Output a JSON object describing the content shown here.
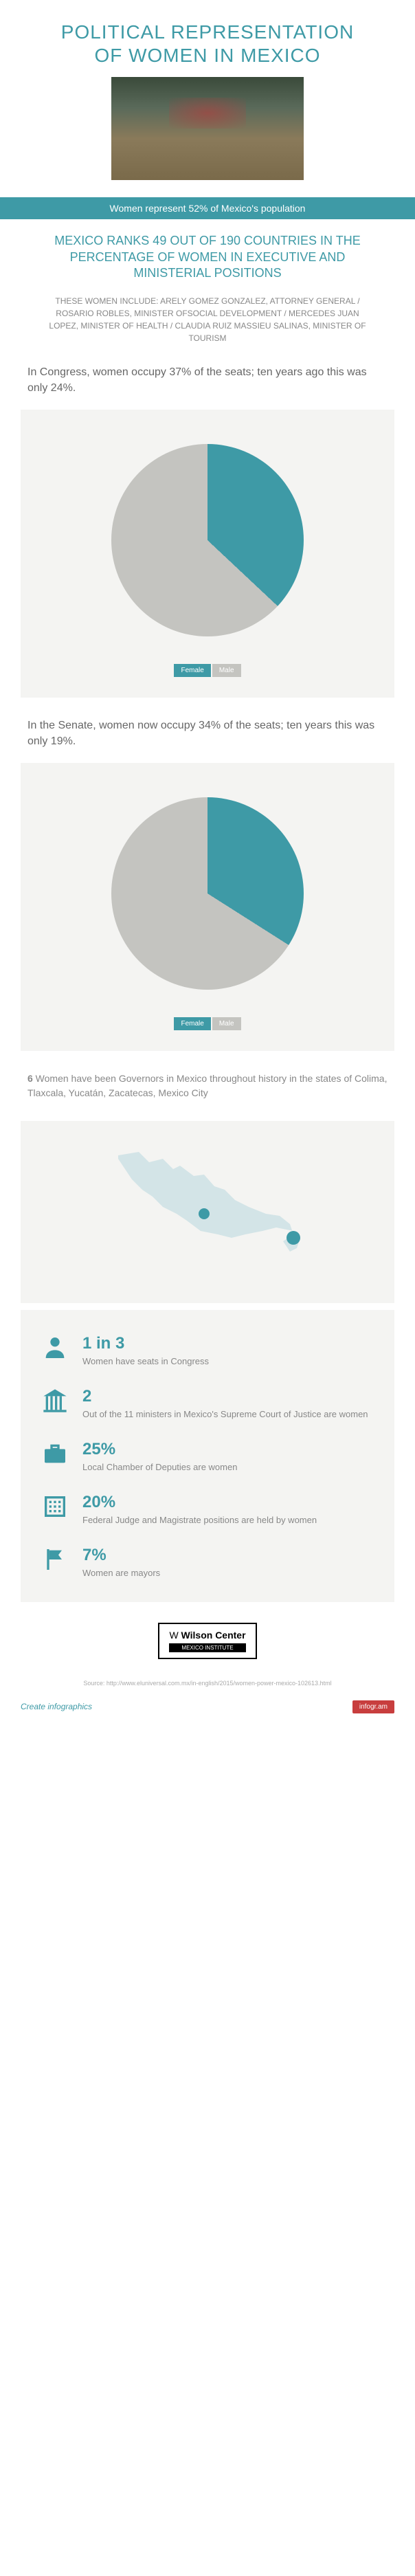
{
  "header": {
    "title_line1": "POLITICAL REPRESENTATION",
    "title_line2": "OF WOMEN IN MEXICO"
  },
  "banner": "Women represent 52% of Mexico's population",
  "rank_text": "MEXICO RANKS 49 OUT OF 190 COUNTRIES IN THE PERCENTAGE OF WOMEN IN EXECUTIVE AND MINISTERIAL POSITIONS",
  "women_list": "THESE WOMEN INCLUDE: ARELY GOMEZ GONZALEZ, ATTORNEY GENERAL / ROSARIO ROBLES, MINISTER OFSOCIAL DEVELOPMENT / MERCEDES JUAN LOPEZ, MINISTER OF HEALTH / CLAUDIA RUIZ MASSIEU SALINAS, MINISTER OF TOURISM",
  "congress": {
    "text": "In Congress, women occupy 37% of the seats; ten years ago this was only 24%.",
    "chart": {
      "type": "pie",
      "values": [
        37,
        63
      ],
      "labels": [
        "Female",
        "Male"
      ],
      "colors": [
        "#3e9aa6",
        "#c4c4c0"
      ],
      "background": "#f4f4f2",
      "diameter": 280
    }
  },
  "senate": {
    "text": "In the Senate, women now occupy 34% of the seats; ten years this was only 19%.",
    "chart": {
      "type": "pie",
      "values": [
        34,
        66
      ],
      "labels": [
        "Female",
        "Male"
      ],
      "colors": [
        "#3e9aa6",
        "#c4c4c0"
      ],
      "background": "#f4f4f2",
      "diameter": 280
    }
  },
  "governors": {
    "number": "6",
    "text": " Women have been Governors in Mexico throughout history in the states of Colima, Tlaxcala, Yucatán, Zacatecas, Mexico City"
  },
  "map": {
    "base_color": "#d3e4e7",
    "highlight_color": "#3e9aa6",
    "background": "#f4f4f2"
  },
  "stats": [
    {
      "icon": "person",
      "number": "1 in 3",
      "label": "Women have seats in Congress"
    },
    {
      "icon": "building",
      "number": "2",
      "label": "Out of the 11 ministers in Mexico's Supreme Court of Justice are women"
    },
    {
      "icon": "briefcase",
      "number": "25%",
      "label": "Local Chamber of Deputies are women"
    },
    {
      "icon": "grid",
      "number": "20%",
      "label": "Federal Judge and Magistrate positions are held by women"
    },
    {
      "icon": "flag",
      "number": "7%",
      "label": "Women are mayors"
    }
  ],
  "colors": {
    "teal": "#3e9aa6",
    "light_gray": "#c4c4c0",
    "text_gray": "#888888",
    "dark_gray": "#666666",
    "section_bg": "#f4f4f2"
  },
  "logo": {
    "main": "Wilson Center",
    "sub": "MEXICO INSTITUTE"
  },
  "source": "Source: http://www.eluniversal.com.mx/in-english/2015/women-power-mexico-102613.html",
  "footer": {
    "create": "Create infographics",
    "badge": "infogr.am"
  }
}
